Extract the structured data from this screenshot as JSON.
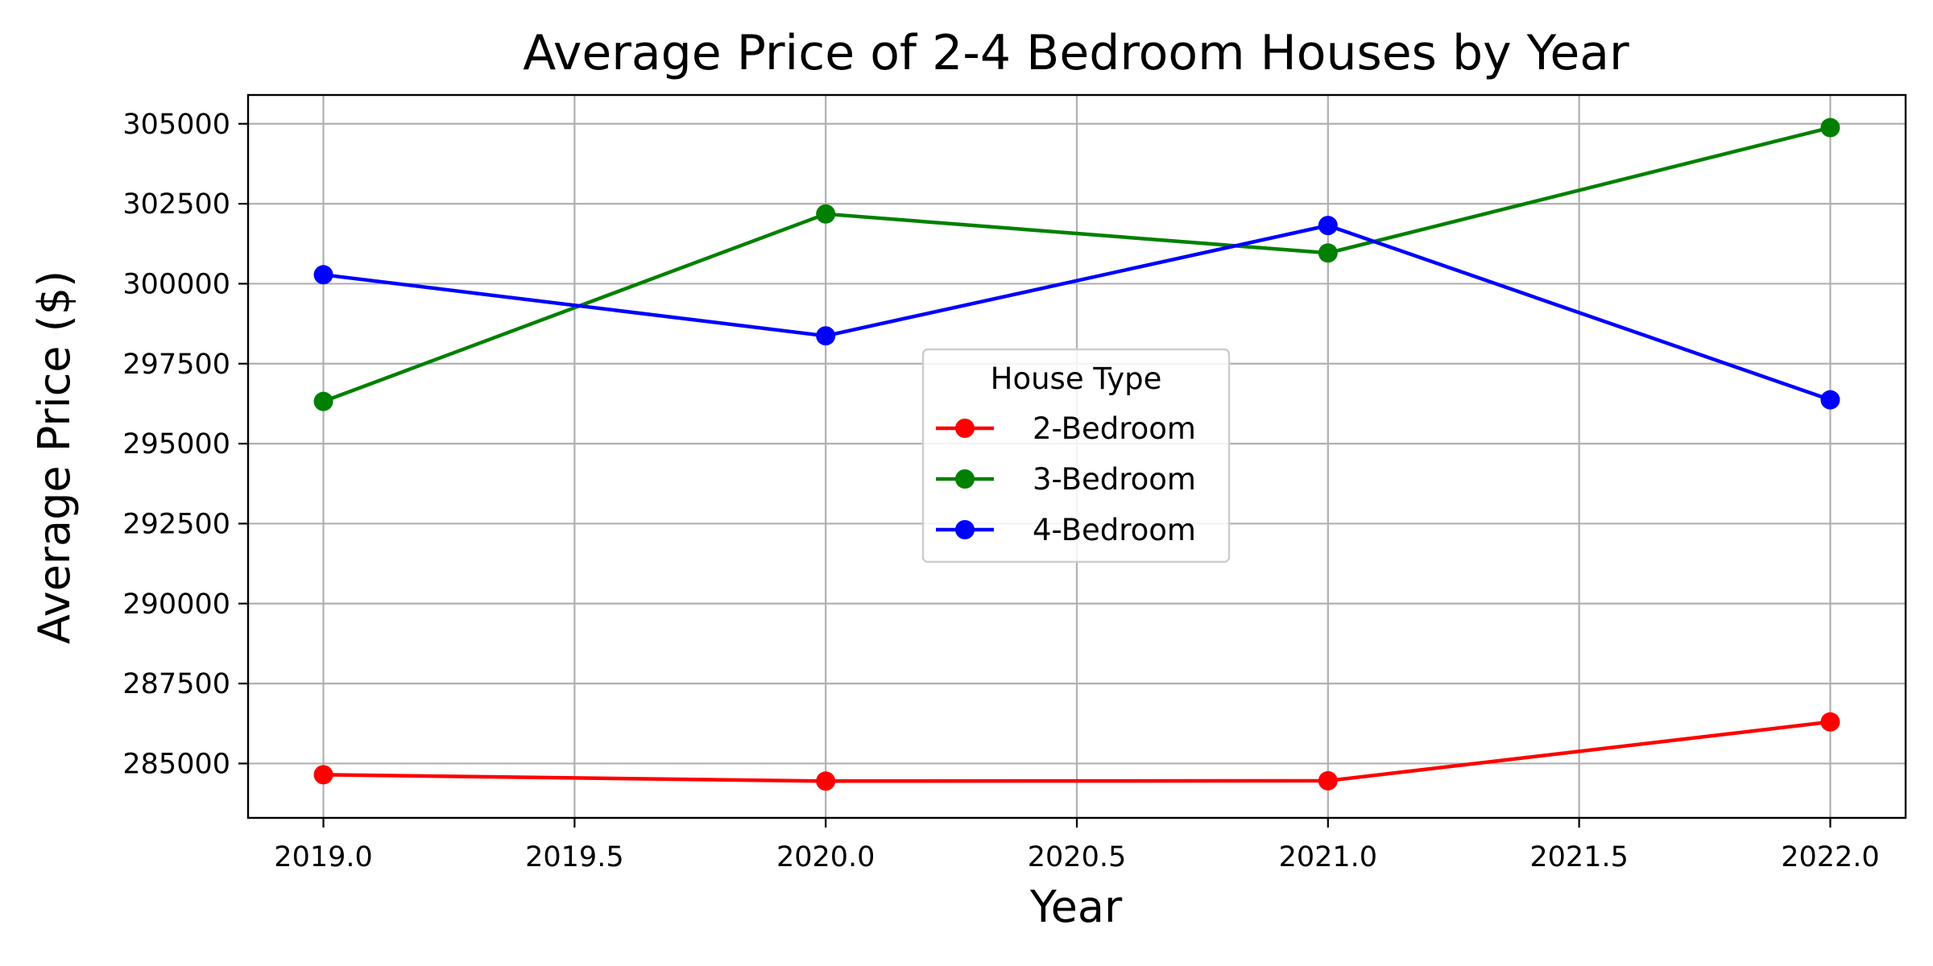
{
  "chart_data": {
    "type": "line",
    "title": "Average Price of 2-4 Bedroom Houses by Year",
    "xlabel": "Year",
    "ylabel": "Average Price ($)",
    "x": [
      2019,
      2020,
      2021,
      2022
    ],
    "xlim": [
      2018.85,
      2022.15
    ],
    "ylim": [
      283300,
      305900
    ],
    "xticks": [
      2019.0,
      2019.5,
      2020.0,
      2020.5,
      2021.0,
      2021.5,
      2022.0
    ],
    "xtick_labels": [
      "2019.0",
      "2019.5",
      "2020.0",
      "2020.5",
      "2021.0",
      "2021.5",
      "2022.0"
    ],
    "yticks": [
      285000,
      287500,
      290000,
      292500,
      295000,
      297500,
      300000,
      302500,
      305000
    ],
    "ytick_labels": [
      "285000",
      "287500",
      "290000",
      "292500",
      "295000",
      "297500",
      "300000",
      "302500",
      "305000"
    ],
    "grid": true,
    "legend": {
      "title": "House Type",
      "placement": "center"
    },
    "series": [
      {
        "name": "2-Bedroom",
        "color": "#ff0000",
        "values": [
          284650,
          284450,
          284460,
          286300
        ]
      },
      {
        "name": "3-Bedroom",
        "color": "#008000",
        "values": [
          296320,
          302180,
          300960,
          304880
        ]
      },
      {
        "name": "4-Bedroom",
        "color": "#0000ff",
        "values": [
          300280,
          298370,
          301820,
          296370
        ]
      }
    ]
  }
}
